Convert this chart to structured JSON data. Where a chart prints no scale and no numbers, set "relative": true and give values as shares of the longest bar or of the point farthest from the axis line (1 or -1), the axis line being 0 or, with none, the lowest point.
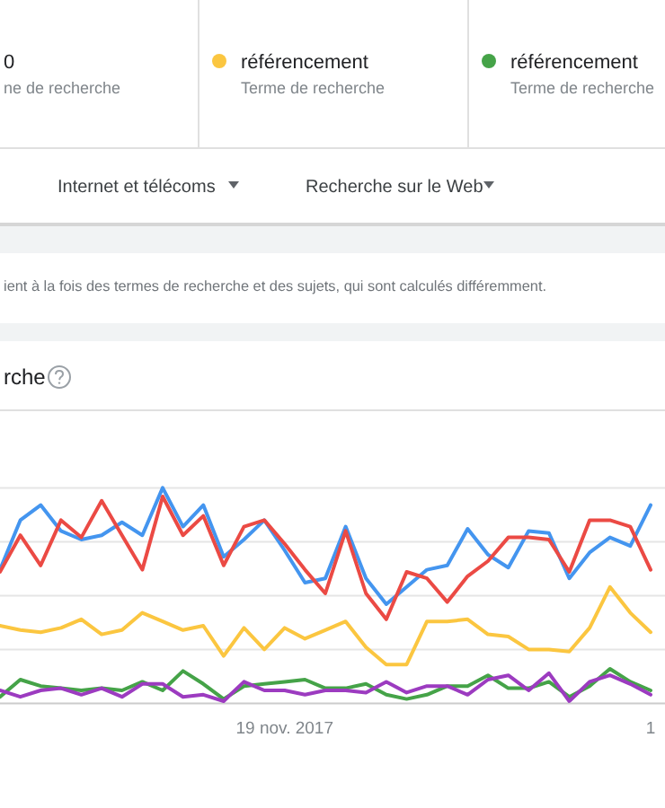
{
  "chart_data": {
    "type": "line",
    "title": "rche",
    "relative": true,
    "grid": "y",
    "legend": "top",
    "categories": [
      null,
      null,
      null,
      null,
      null,
      null,
      null,
      null,
      null,
      null,
      null,
      null,
      null,
      null,
      "19 nov. 2017",
      null,
      null,
      null,
      null,
      null,
      null,
      null,
      null,
      null,
      null,
      null,
      null,
      null,
      null,
      null,
      null,
      null,
      "1"
    ],
    "series": [
      {
        "color": "#4495ef",
        "values": [
          0.62,
          0.85,
          0.92,
          0.8,
          0.76,
          0.78,
          0.84,
          0.78,
          1,
          0.82,
          0.92,
          0.68,
          0.76,
          0.85,
          0.71,
          0.56,
          0.58,
          0.82,
          0.58,
          0.46,
          0.54,
          0.62,
          0.64,
          0.81,
          0.69,
          0.63,
          0.8,
          0.79,
          0.58,
          0.7,
          0.77,
          0.73,
          0.92
        ]
      },
      {
        "color": "#eb4a44",
        "values": [
          0.61,
          0.78,
          0.64,
          0.85,
          0.77,
          0.94,
          0.78,
          0.62,
          0.96,
          0.78,
          0.87,
          0.64,
          0.82,
          0.85,
          0.74,
          0.62,
          0.51,
          0.8,
          0.51,
          0.39,
          0.61,
          0.58,
          0.47,
          0.59,
          0.66,
          0.77,
          0.77,
          0.76,
          0.61,
          0.85,
          0.85,
          0.82,
          0.62
        ]
      },
      {
        "name": "référencement",
        "color": "#fbc640",
        "values": [
          0.36,
          0.34,
          0.33,
          0.35,
          0.39,
          0.32,
          0.34,
          0.42,
          0.38,
          0.34,
          0.36,
          0.22,
          0.35,
          0.25,
          0.35,
          0.3,
          0.34,
          0.38,
          0.26,
          0.18,
          0.18,
          0.38,
          0.38,
          0.39,
          0.32,
          0.31,
          0.25,
          0.25,
          0.24,
          0.35,
          0.54,
          0.42,
          0.33
        ]
      },
      {
        "name": "référencement",
        "color": "#45a348",
        "values": [
          0.03,
          0.11,
          0.08,
          0.07,
          0.06,
          0.07,
          0.06,
          0.1,
          0.06,
          0.15,
          0.09,
          0.02,
          0.08,
          0.09,
          0.1,
          0.11,
          0.07,
          0.07,
          0.09,
          0.04,
          0.02,
          0.04,
          0.08,
          0.08,
          0.13,
          0.07,
          0.07,
          0.1,
          0.03,
          0.08,
          0.16,
          0.1,
          0.06
        ]
      },
      {
        "color": "#9c3bc0",
        "values": [
          0.06,
          0.03,
          0.06,
          0.07,
          0.04,
          0.07,
          0.03,
          0.09,
          0.09,
          0.03,
          0.04,
          0.01,
          0.1,
          0.06,
          0.06,
          0.04,
          0.06,
          0.06,
          0.05,
          0.1,
          0.05,
          0.08,
          0.08,
          0.04,
          0.11,
          0.13,
          0.06,
          0.14,
          0.01,
          0.1,
          0.13,
          0.09,
          0.04
        ]
      }
    ],
    "annotations": [
      "0",
      "ne de recherche",
      "Terme de recherche",
      "Terme de recherche",
      "Internet et télécoms",
      "Recherche sur le Web",
      "ient à la fois des termes de recherche et des sujets, qui sont calculés différemment."
    ]
  }
}
